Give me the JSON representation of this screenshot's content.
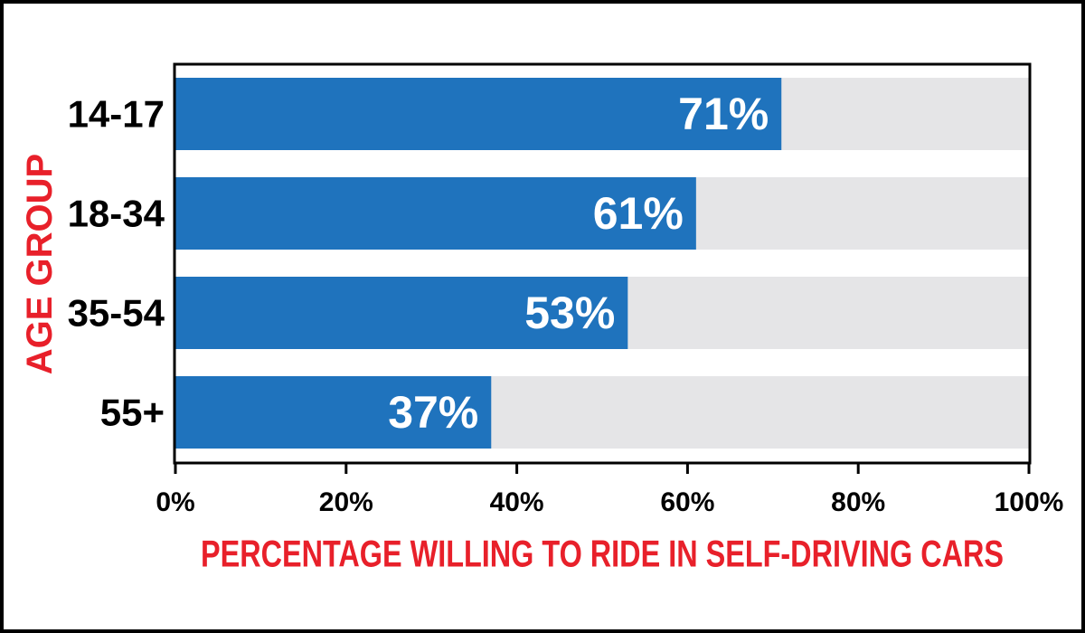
{
  "colors": {
    "bar": "#1f73bd",
    "track": "#e5e5e7",
    "axis_title": "#e8202a",
    "text": "#000000",
    "data_label": "#ffffff"
  },
  "chart_data": {
    "type": "bar",
    "orientation": "horizontal",
    "categories": [
      "14-17",
      "18-34",
      "35-54",
      "55+"
    ],
    "values": [
      71,
      61,
      53,
      37
    ],
    "data_labels": [
      "71%",
      "61%",
      "53%",
      "37%"
    ],
    "xlabel": "PERCENTAGE WILLING TO RIDE IN SELF-DRIVING CARS",
    "ylabel": "AGE GROUP",
    "xlim": [
      0,
      100
    ],
    "xticks": [
      0,
      20,
      40,
      60,
      80,
      100
    ],
    "xtick_labels": [
      "0%",
      "20%",
      "40%",
      "60%",
      "80%",
      "100%"
    ],
    "grid": false,
    "legend": "none"
  }
}
